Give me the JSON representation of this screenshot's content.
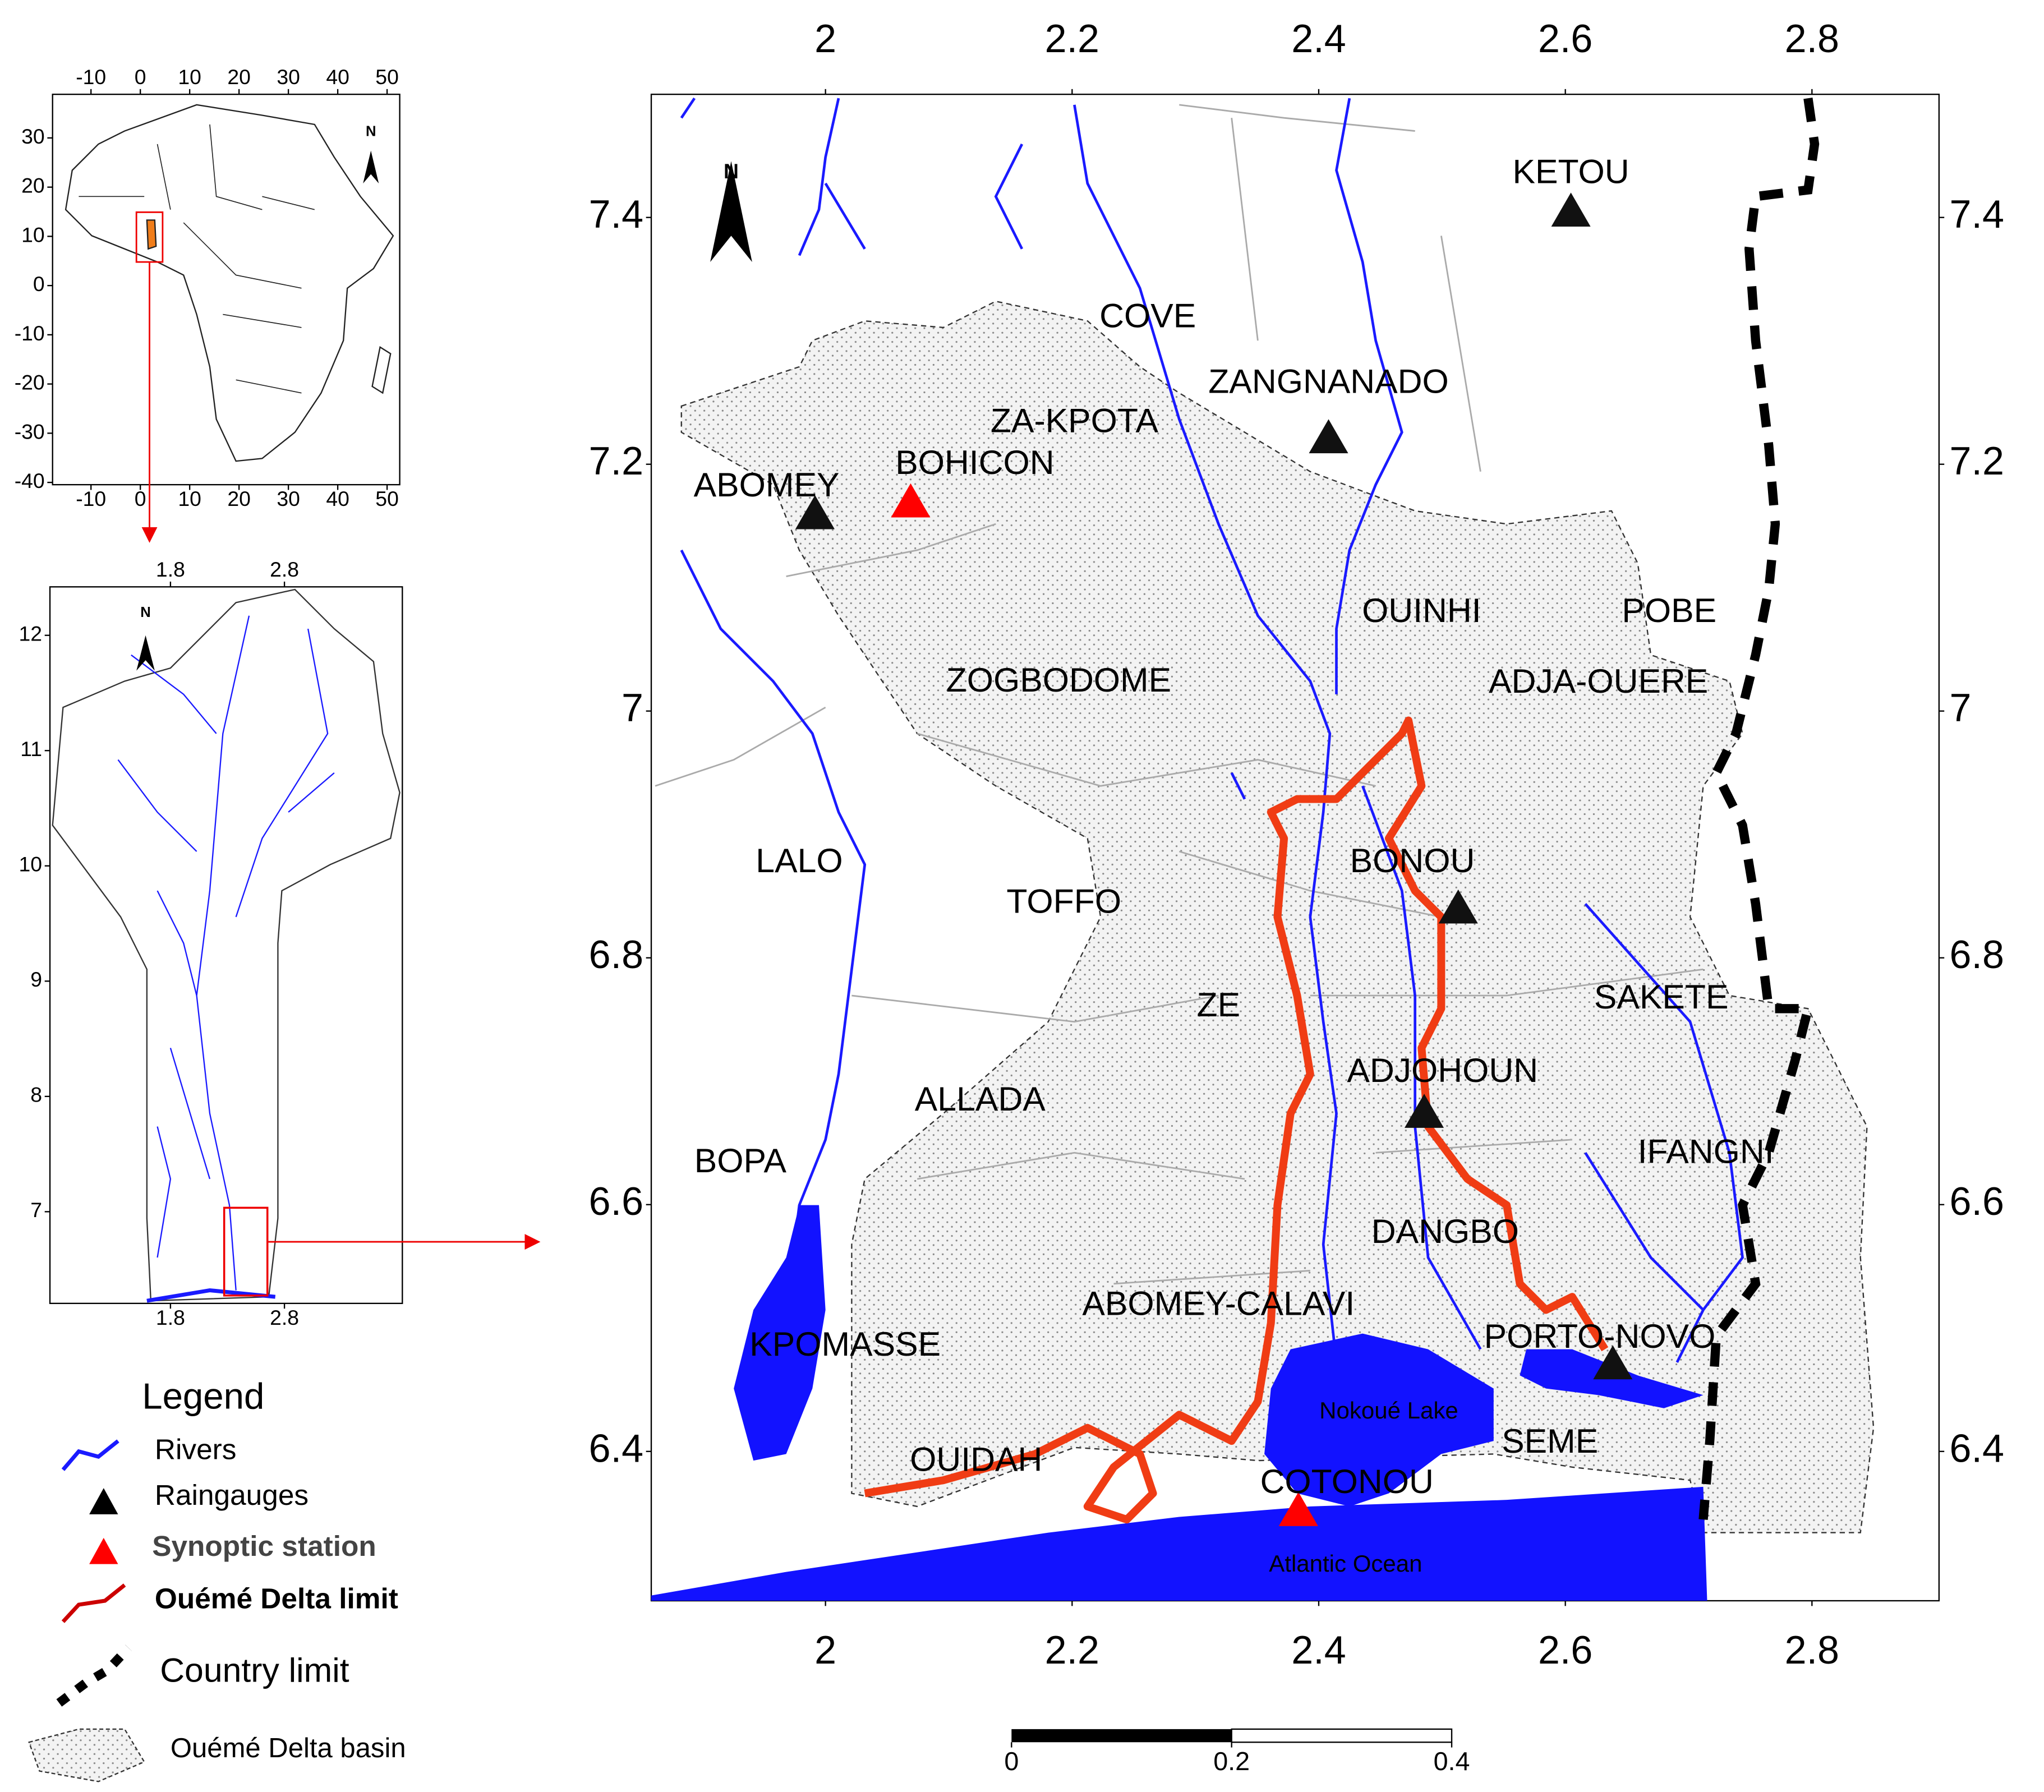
{
  "inset_africa": {
    "xticks": [
      -10,
      0,
      10,
      20,
      30,
      40,
      50
    ],
    "yticks": [
      30,
      20,
      10,
      0,
      -10,
      -20,
      -30,
      -40
    ],
    "north": "N"
  },
  "inset_benin": {
    "xticks": [
      1.8,
      2.8
    ],
    "yticks": [
      12,
      11,
      10,
      9,
      8,
      7
    ],
    "north": "N"
  },
  "main_map": {
    "xticks": [
      2,
      2.2,
      2.4,
      2.6,
      2.8
    ],
    "yticks": [
      7.4,
      7.2,
      7,
      6.8,
      6.6,
      6.4
    ],
    "north": "N",
    "places": [
      "KETOU",
      "COVE",
      "ZANGNANADO",
      "ZA-KPOTA",
      "BOHICON",
      "ABOMEY",
      "OUINHI",
      "POBE",
      "ZOGBODOME",
      "ADJA-OUERE",
      "LALO",
      "BONOU",
      "TOFFO",
      "ZE",
      "SAKETE",
      "ADJOHOUN",
      "ALLADA",
      "IFANGNI",
      "BOPA",
      "DANGBO",
      "ABOMEY-CALAVI",
      "PORTO-NOVO",
      "KPOMASSE",
      "SEME",
      "OUIDAH",
      "COTONOU"
    ],
    "water_labels": [
      "Nokoué Lake",
      "Atlantic Ocean"
    ]
  },
  "legend": {
    "title": "Legend",
    "items": [
      "Rivers",
      "Raingauges",
      "Synoptic station",
      "Ouémé Delta limit",
      "Country limit",
      "Ouémé Delta basin"
    ]
  },
  "scale_bar": {
    "labels": [
      0,
      0.2,
      0.4
    ]
  }
}
